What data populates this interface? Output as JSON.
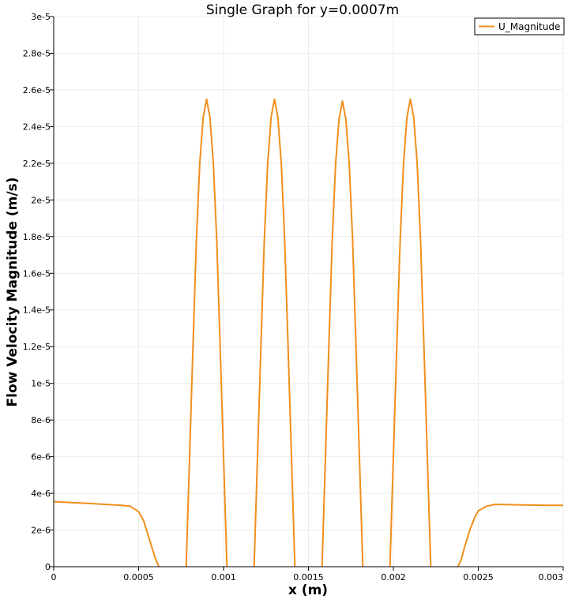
{
  "chart_data": {
    "type": "line",
    "title": "Single Graph for y=0.0007m",
    "xlabel": "x (m)",
    "ylabel": "Flow Velocity Magnitude (m/s)",
    "xlim": [
      0,
      0.003
    ],
    "ylim": [
      0,
      3e-05
    ],
    "x_ticks": [
      {
        "value": 0,
        "label": "0"
      },
      {
        "value": 0.0005,
        "label": "0.0005"
      },
      {
        "value": 0.001,
        "label": "0.001"
      },
      {
        "value": 0.0015,
        "label": "0.0015"
      },
      {
        "value": 0.002,
        "label": "0.002"
      },
      {
        "value": 0.0025,
        "label": "0.0025"
      },
      {
        "value": 0.003,
        "label": "0.003"
      }
    ],
    "y_ticks": [
      {
        "value": 0,
        "label": "0"
      },
      {
        "value": 2e-06,
        "label": "2e-6"
      },
      {
        "value": 4e-06,
        "label": "4e-6"
      },
      {
        "value": 6e-06,
        "label": "6e-6"
      },
      {
        "value": 8e-06,
        "label": "8e-6"
      },
      {
        "value": 1e-05,
        "label": "1e-5"
      },
      {
        "value": 1.2e-05,
        "label": "1.2e-5"
      },
      {
        "value": 1.4e-05,
        "label": "1.4e-5"
      },
      {
        "value": 1.6e-05,
        "label": "1.6e-5"
      },
      {
        "value": 1.8e-05,
        "label": "1.8e-5"
      },
      {
        "value": 2e-05,
        "label": "2e-5"
      },
      {
        "value": 2.2e-05,
        "label": "2.2e-5"
      },
      {
        "value": 2.4e-05,
        "label": "2.4e-5"
      },
      {
        "value": 2.6e-05,
        "label": "2.6e-5"
      },
      {
        "value": 2.8e-05,
        "label": "2.8e-5"
      },
      {
        "value": 3e-05,
        "label": "3e-5"
      }
    ],
    "grid": true,
    "legend_position": "top-right",
    "series": [
      {
        "name": "U_Magnitude",
        "color": "#f28e1c",
        "segments": [
          {
            "x": [
              0,
              0.0001,
              0.0002,
              0.0003,
              0.0004,
              0.00045,
              0.0005,
              0.00053,
              0.00056,
              0.00058,
              0.0006,
              0.00062
            ],
            "y": [
              3.55e-06,
              3.5e-06,
              3.45e-06,
              3.4e-06,
              3.35e-06,
              3.3e-06,
              3e-06,
              2.5e-06,
              1.6e-06,
              1e-06,
              4e-07,
              0
            ]
          },
          {
            "x": [
              0.00078,
              0.0008,
              0.00082,
              0.00084,
              0.00086,
              0.00088,
              0.0009,
              0.00092,
              0.00094,
              0.00096,
              0.00098,
              0.001,
              0.00102
            ],
            "y": [
              0,
              6e-06,
              1.2e-05,
              1.78e-05,
              2.2e-05,
              2.45e-05,
              2.55e-05,
              2.45e-05,
              2.2e-05,
              1.78e-05,
              1.2e-05,
              6e-06,
              0
            ]
          },
          {
            "x": [
              0.00118,
              0.0012,
              0.00122,
              0.00124,
              0.00126,
              0.00128,
              0.0013,
              0.00132,
              0.00134,
              0.00136,
              0.00138,
              0.0014,
              0.00142
            ],
            "y": [
              0,
              6e-06,
              1.2e-05,
              1.78e-05,
              2.2e-05,
              2.45e-05,
              2.55e-05,
              2.45e-05,
              2.2e-05,
              1.78e-05,
              1.2e-05,
              6e-06,
              0
            ]
          },
          {
            "x": [
              0.00158,
              0.0016,
              0.00162,
              0.00164,
              0.00166,
              0.00168,
              0.0017,
              0.00172,
              0.00174,
              0.00176,
              0.00178,
              0.0018,
              0.00182
            ],
            "y": [
              0,
              6e-06,
              1.2e-05,
              1.78e-05,
              2.2e-05,
              2.44e-05,
              2.54e-05,
              2.44e-05,
              2.2e-05,
              1.78e-05,
              1.2e-05,
              6e-06,
              0
            ]
          },
          {
            "x": [
              0.00198,
              0.002,
              0.00202,
              0.00204,
              0.00206,
              0.00208,
              0.0021,
              0.00212,
              0.00214,
              0.00216,
              0.00218,
              0.0022,
              0.00222
            ],
            "y": [
              0,
              6e-06,
              1.2e-05,
              1.78e-05,
              2.2e-05,
              2.45e-05,
              2.55e-05,
              2.45e-05,
              2.2e-05,
              1.78e-05,
              1.2e-05,
              6e-06,
              0
            ]
          },
          {
            "x": [
              0.00238,
              0.0024,
              0.00242,
              0.00245,
              0.00248,
              0.0025,
              0.00255,
              0.0026,
              0.0027,
              0.0028,
              0.0029,
              0.003
            ],
            "y": [
              0,
              4e-07,
              1.1e-06,
              2e-06,
              2.7e-06,
              3.05e-06,
              3.3e-06,
              3.4e-06,
              3.38e-06,
              3.36e-06,
              3.35e-06,
              3.35e-06
            ]
          }
        ]
      }
    ]
  }
}
